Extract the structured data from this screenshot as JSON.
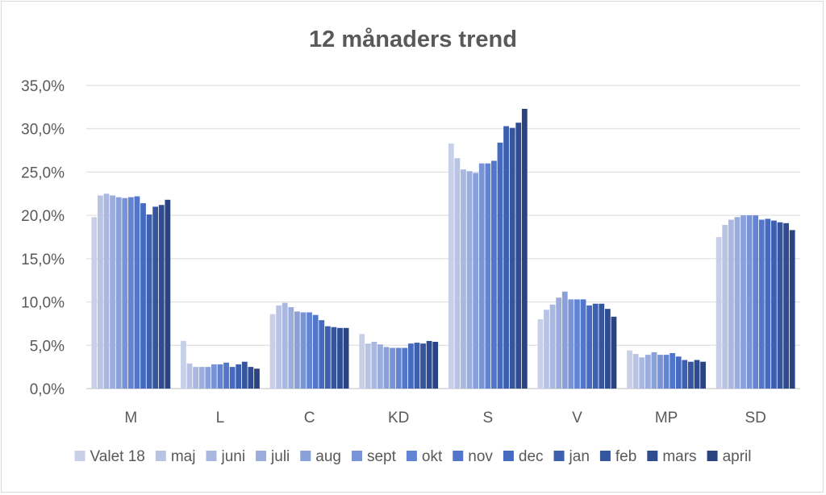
{
  "chart_data": {
    "type": "bar",
    "title": "12 månaders trend",
    "xlabel": "",
    "ylabel": "",
    "ylim": [
      0,
      35
    ],
    "yticks": [
      "0,0%",
      "5,0%",
      "10,0%",
      "15,0%",
      "20,0%",
      "25,0%",
      "30,0%",
      "35,0%"
    ],
    "grid": true,
    "legend_position": "bottom",
    "categories": [
      "M",
      "L",
      "C",
      "KD",
      "S",
      "V",
      "MP",
      "SD"
    ],
    "series": [
      {
        "name": "Valet 18",
        "color": "#c7d0e8",
        "values": [
          19.8,
          5.5,
          8.6,
          6.3,
          28.3,
          8.0,
          4.4,
          17.5
        ]
      },
      {
        "name": "maj",
        "color": "#b9c4e5",
        "values": [
          22.3,
          2.9,
          9.6,
          5.2,
          26.6,
          9.1,
          4.0,
          18.9
        ]
      },
      {
        "name": "juni",
        "color": "#aab8e1",
        "values": [
          22.5,
          2.5,
          9.9,
          5.4,
          25.3,
          9.7,
          3.6,
          19.5
        ]
      },
      {
        "name": "juli",
        "color": "#9aaddd",
        "values": [
          22.3,
          2.5,
          9.4,
          5.1,
          25.1,
          10.5,
          3.9,
          19.8
        ]
      },
      {
        "name": "aug",
        "color": "#8aa0d9",
        "values": [
          22.1,
          2.5,
          8.9,
          4.8,
          24.9,
          11.2,
          4.2,
          20.0
        ]
      },
      {
        "name": "sept",
        "color": "#7893d6",
        "values": [
          22.0,
          2.8,
          8.8,
          4.7,
          26.0,
          10.3,
          3.9,
          20.0
        ]
      },
      {
        "name": "okt",
        "color": "#6383d3",
        "values": [
          22.1,
          2.8,
          8.8,
          4.7,
          26.0,
          10.3,
          3.9,
          20.0
        ]
      },
      {
        "name": "nov",
        "color": "#5176cc",
        "values": [
          22.2,
          3.0,
          8.5,
          4.7,
          26.3,
          10.3,
          4.1,
          19.5
        ]
      },
      {
        "name": "dec",
        "color": "#456ac0",
        "values": [
          21.4,
          2.5,
          7.9,
          5.2,
          28.4,
          9.6,
          3.7,
          19.6
        ]
      },
      {
        "name": "jan",
        "color": "#3d5fb0",
        "values": [
          20.1,
          2.8,
          7.2,
          5.3,
          30.3,
          9.8,
          3.3,
          19.4
        ]
      },
      {
        "name": "feb",
        "color": "#35559f",
        "values": [
          21.0,
          3.1,
          7.1,
          5.2,
          30.1,
          9.8,
          3.1,
          19.2
        ]
      },
      {
        "name": "mars",
        "color": "#2f4c90",
        "values": [
          21.2,
          2.5,
          7.0,
          5.5,
          30.7,
          9.2,
          3.3,
          19.1
        ]
      },
      {
        "name": "april",
        "color": "#2a4482",
        "values": [
          21.8,
          2.3,
          7.0,
          5.4,
          32.3,
          8.3,
          3.1,
          18.3
        ]
      }
    ]
  }
}
